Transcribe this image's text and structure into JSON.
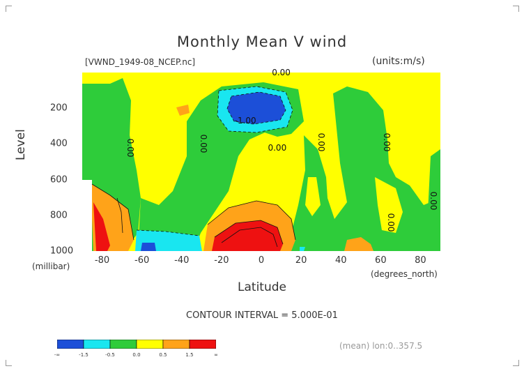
{
  "chart_data": {
    "type": "heatmap",
    "title": "Monthly Mean V wind",
    "subtitle": "[VWND_1949-08_NCEP.nc]",
    "units": "(units:m/s)",
    "xlabel": "Latitude",
    "xlabel_unit": "(degrees_north)",
    "ylabel": "Level",
    "ylabel_unit": "(millibar)",
    "xlim": [
      -90,
      90
    ],
    "ylim": [
      1000,
      0
    ],
    "x_ticks": [
      -80,
      -60,
      -40,
      -20,
      0,
      20,
      40,
      60,
      80
    ],
    "y_ticks": [
      200,
      400,
      600,
      800,
      1000
    ],
    "contour_interval": "CONTOUR INTERVAL = 5.000E-01",
    "footnote": "(mean) lon:0..357.5",
    "contour_labels": [
      {
        "text": "0.00",
        "x": 10,
        "y": 0
      },
      {
        "text": "-1.00",
        "x": -8,
        "y": 270
      },
      {
        "text": "0.00",
        "x": -66,
        "y": 420
      },
      {
        "text": "0.00",
        "x": -29,
        "y": 400
      },
      {
        "text": "0.00",
        "x": 8,
        "y": 420
      },
      {
        "text": "0.00",
        "x": 30,
        "y": 390
      },
      {
        "text": "0.00",
        "x": 63,
        "y": 390
      },
      {
        "text": "0.00",
        "x": 90,
        "y": 720
      },
      {
        "text": "0.00",
        "x": 65,
        "y": 840
      }
    ],
    "colorbar": {
      "colors": [
        "#1c4fd8",
        "#19e6f0",
        "#2ecc3a",
        "#ffff00",
        "#ffa319",
        "#ee1111"
      ],
      "labels": [
        "-∞",
        "-1.5",
        "-0.5",
        "0.0",
        "0.5",
        "1.5",
        "∞"
      ]
    }
  }
}
